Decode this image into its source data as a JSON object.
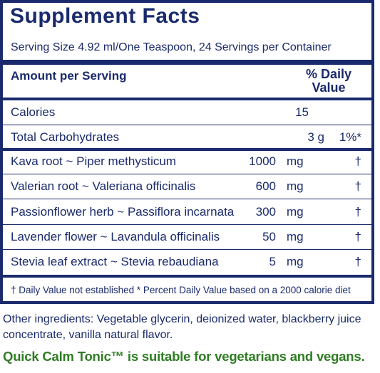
{
  "title": "Supplement Facts",
  "serving": "Serving Size 4.92 ml/One Teaspoon, 24 Servings per Container",
  "header": {
    "amount": "Amount per Serving",
    "daily_value": "% Daily Value"
  },
  "calories": {
    "name": "Calories",
    "amount": "15"
  },
  "carbs": {
    "name": "Total Carbohydrates",
    "amount": "3 g",
    "dv": "1%*"
  },
  "ingredients": [
    {
      "name": "Kava root ~ Piper methysticum",
      "amount": "1000",
      "unit": "mg",
      "dv": "†"
    },
    {
      "name": "Valerian root ~ Valeriana officinalis",
      "amount": "600",
      "unit": "mg",
      "dv": "†"
    },
    {
      "name": "Passionflower herb ~ Passiflora incarnata",
      "amount": "300",
      "unit": "mg",
      "dv": "†"
    },
    {
      "name": "Lavender flower ~ Lavandula officinalis",
      "amount": "50",
      "unit": "mg",
      "dv": "†"
    },
    {
      "name": "Stevia leaf extract ~ Stevia rebaudiana",
      "amount": "5",
      "unit": "mg",
      "dv": "†"
    }
  ],
  "footnote": "†  Daily Value not established   * Percent Daily Value based on a 2000 calorie diet",
  "other_ingredients": "Other ingredients: Vegetable glycerin, deionized water, blackberry juice concentrate, vanilla natural flavor.",
  "vegan_note": "Quick Calm Tonic™ is suitable for vegetarians and vegans.",
  "colors": {
    "navy": "#1a2a6c",
    "green": "#2e7d23"
  }
}
